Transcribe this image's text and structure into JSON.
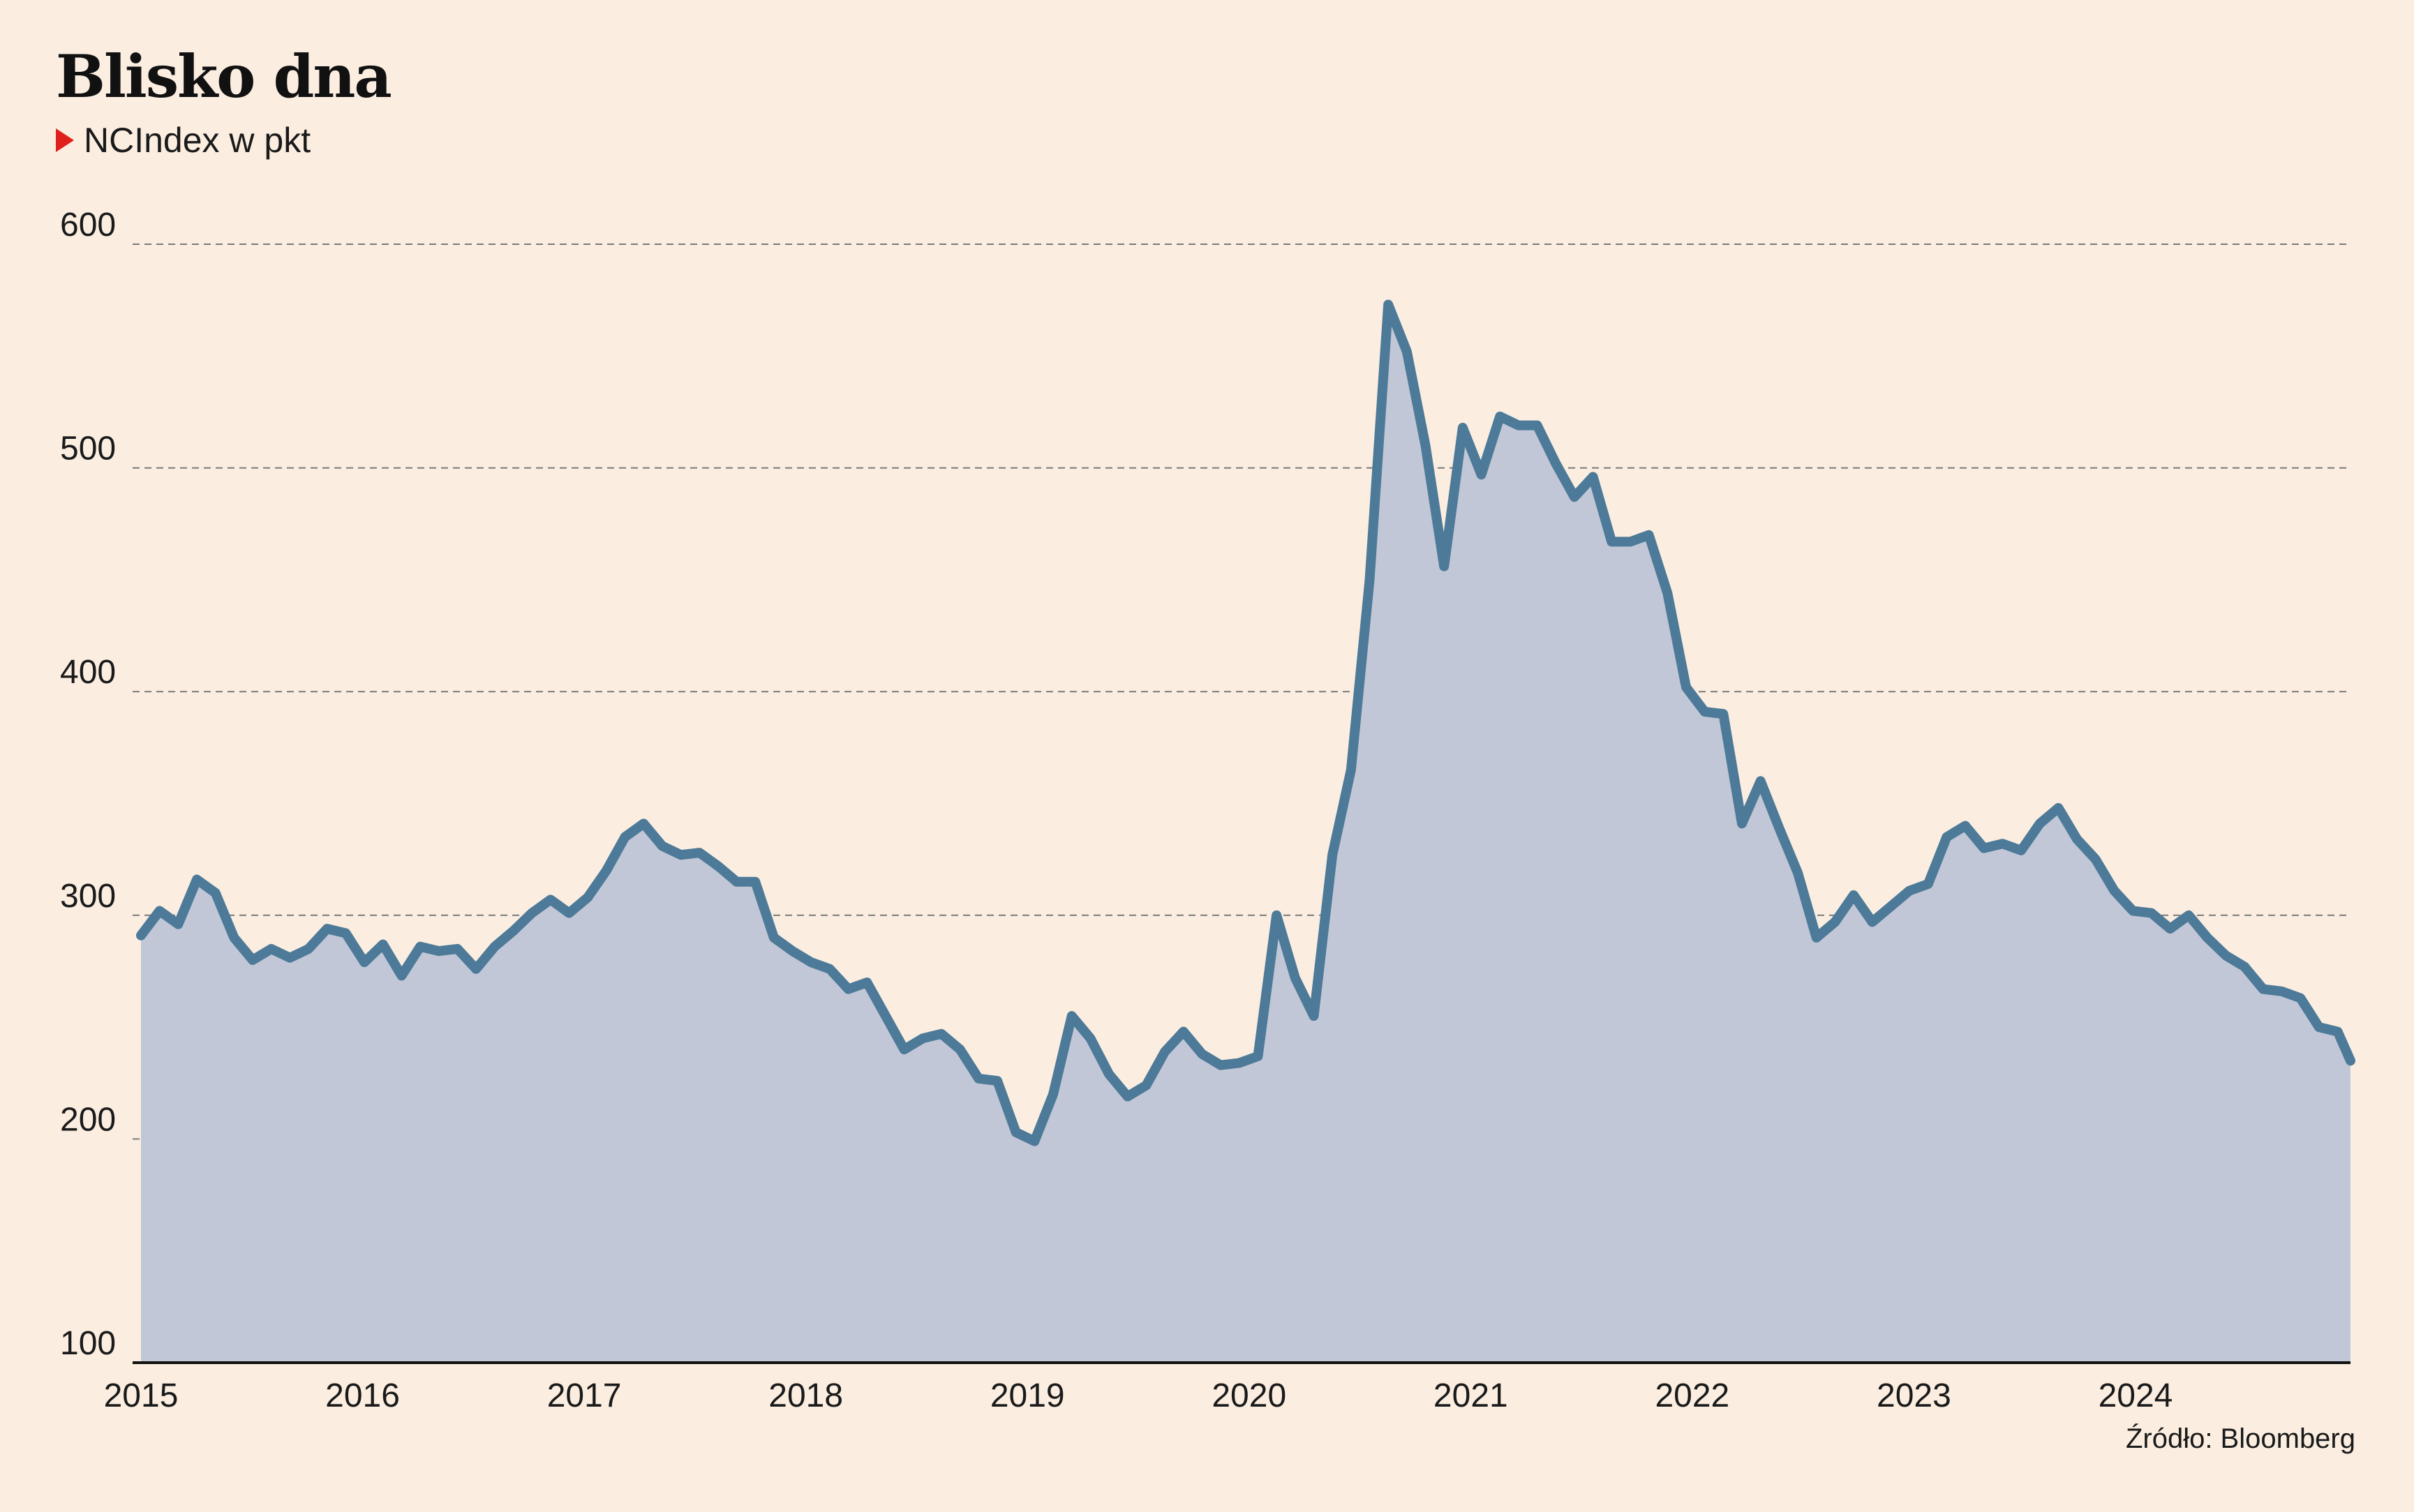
{
  "title": "Blisko dna",
  "subtitle": "NCIndex w pkt",
  "source": "Źródło: Bloomberg",
  "colors": {
    "background": "#fbeee1",
    "line": "#4d7a98",
    "area": "#c1c7d7",
    "marker": "#e0201b",
    "grid": "#7a7a7a"
  },
  "chart_data": {
    "type": "area",
    "title": "Blisko dna",
    "xlabel": "",
    "ylabel": "",
    "ylim": [
      100,
      600
    ],
    "yticks": [
      100,
      200,
      300,
      400,
      500,
      600
    ],
    "xlim": [
      2015.0,
      2024.97
    ],
    "xticks": [
      "2015",
      "2016",
      "2017",
      "2018",
      "2019",
      "2020",
      "2021",
      "2022",
      "2023",
      "2024"
    ],
    "grid": "horizontal dashed",
    "series": [
      {
        "name": "NCIndex w pkt",
        "x": [
          2015.0,
          2015.084,
          2015.168,
          2015.252,
          2015.336,
          2015.42,
          2015.504,
          2015.588,
          2015.672,
          2015.756,
          2015.84,
          2015.924,
          2016.008,
          2016.092,
          2016.176,
          2016.26,
          2016.344,
          2016.428,
          2016.512,
          2016.596,
          2016.68,
          2016.764,
          2016.848,
          2016.932,
          2017.016,
          2017.1,
          2017.184,
          2017.268,
          2017.352,
          2017.436,
          2017.52,
          2017.604,
          2017.688,
          2017.772,
          2017.856,
          2017.94,
          2018.024,
          2018.108,
          2018.192,
          2018.276,
          2018.36,
          2018.444,
          2018.528,
          2018.612,
          2018.696,
          2018.78,
          2018.864,
          2018.948,
          2019.032,
          2019.116,
          2019.2,
          2019.284,
          2019.368,
          2019.452,
          2019.536,
          2019.62,
          2019.704,
          2019.788,
          2019.872,
          2019.956,
          2020.04,
          2020.124,
          2020.208,
          2020.292,
          2020.376,
          2020.46,
          2020.544,
          2020.628,
          2020.712,
          2020.796,
          2020.88,
          2020.964,
          2021.048,
          2021.132,
          2021.216,
          2021.3,
          2021.384,
          2021.468,
          2021.552,
          2021.636,
          2021.72,
          2021.804,
          2021.888,
          2021.972,
          2022.056,
          2022.14,
          2022.224,
          2022.308,
          2022.392,
          2022.476,
          2022.56,
          2022.644,
          2022.728,
          2022.812,
          2022.896,
          2022.98,
          2023.064,
          2023.148,
          2023.232,
          2023.316,
          2023.4,
          2023.484,
          2023.568,
          2023.652,
          2023.736,
          2023.82,
          2023.904,
          2023.988,
          2024.072,
          2024.156,
          2024.24,
          2024.324,
          2024.408,
          2024.492,
          2024.576,
          2024.66,
          2024.744,
          2024.828,
          2024.912,
          2024.97
        ],
        "values": [
          291,
          302,
          296,
          316,
          310,
          290,
          280,
          285,
          281,
          285,
          294,
          292,
          279,
          287,
          273,
          286,
          284,
          285,
          276,
          286,
          293,
          301,
          307,
          301,
          308,
          320,
          335,
          341,
          331,
          327,
          328,
          322,
          315,
          315,
          290,
          284,
          279,
          276,
          267,
          270,
          255,
          240,
          245,
          247,
          240,
          227,
          226,
          203,
          199,
          220,
          255,
          245,
          229,
          219,
          224,
          239,
          248,
          238,
          233,
          234,
          237,
          300,
          272,
          255,
          327,
          365,
          450,
          573,
          552,
          510,
          456,
          518,
          497,
          523,
          519,
          519,
          502,
          487,
          496,
          467,
          467,
          470,
          444,
          402,
          391,
          390,
          341,
          360,
          339,
          319,
          290,
          297,
          309,
          297,
          304,
          311,
          314,
          335,
          340,
          330,
          332,
          329,
          341,
          348,
          334,
          325,
          311,
          302,
          301,
          294,
          300,
          290,
          282,
          277,
          267,
          266,
          263,
          250,
          248,
          235
        ]
      }
    ]
  }
}
